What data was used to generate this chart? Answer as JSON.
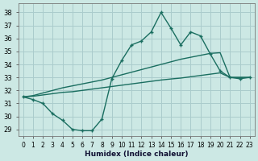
{
  "xlabel": "Humidex (Indice chaleur)",
  "bg_color": "#cce8e4",
  "grid_color": "#aacccc",
  "line_color": "#1a6e60",
  "xlim": [
    -0.5,
    23.5
  ],
  "ylim": [
    28.5,
    38.7
  ],
  "yticks": [
    29,
    30,
    31,
    32,
    33,
    34,
    35,
    36,
    37,
    38
  ],
  "xticks": [
    0,
    1,
    2,
    3,
    4,
    5,
    6,
    7,
    8,
    9,
    10,
    11,
    12,
    13,
    14,
    15,
    16,
    17,
    18,
    19,
    20,
    21,
    22,
    23
  ],
  "line1": [
    31.5,
    31.3,
    31.0,
    30.2,
    29.7,
    29.0,
    28.9,
    28.9,
    29.8,
    32.9,
    34.3,
    35.5,
    35.8,
    36.5,
    38.0,
    36.8,
    35.5,
    36.5,
    36.2,
    34.8,
    33.5,
    33.0,
    32.9,
    33.0
  ],
  "line2": [
    31.5,
    31.6,
    31.8,
    32.0,
    32.2,
    32.35,
    32.5,
    32.65,
    32.8,
    33.0,
    33.2,
    33.4,
    33.6,
    33.8,
    34.0,
    34.2,
    34.4,
    34.55,
    34.7,
    34.85,
    34.9,
    33.0,
    33.0,
    33.0
  ],
  "line3": [
    31.5,
    31.55,
    31.65,
    31.75,
    31.85,
    31.9,
    32.0,
    32.1,
    32.2,
    32.3,
    32.4,
    32.5,
    32.6,
    32.7,
    32.8,
    32.88,
    32.95,
    33.05,
    33.15,
    33.25,
    33.35,
    33.0,
    33.0,
    33.0
  ]
}
